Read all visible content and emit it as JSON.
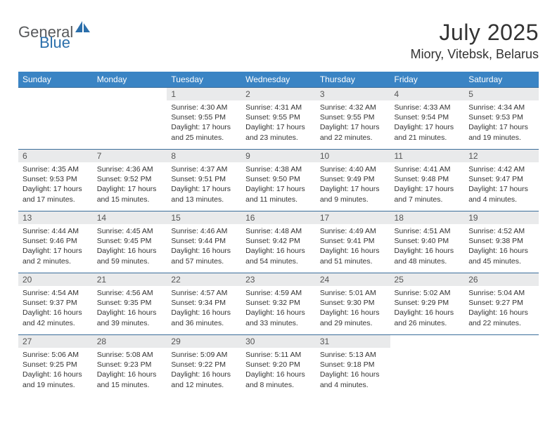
{
  "logo": {
    "general": "General",
    "blue": "Blue"
  },
  "title": {
    "month_year": "July 2025",
    "location": "Miory, Vitebsk, Belarus"
  },
  "colors": {
    "header_bg": "#3a84c4",
    "header_text": "#ffffff",
    "daynum_bg": "#e9eaeb",
    "daynum_border": "#3a6d9a",
    "body_text": "#333333",
    "logo_gray": "#585a5c",
    "logo_blue": "#2b6fab"
  },
  "weekdays": [
    "Sunday",
    "Monday",
    "Tuesday",
    "Wednesday",
    "Thursday",
    "Friday",
    "Saturday"
  ],
  "weeks": [
    [
      null,
      null,
      {
        "n": "1",
        "sr": "4:30 AM",
        "ss": "9:55 PM",
        "dl": "17 hours and 25 minutes."
      },
      {
        "n": "2",
        "sr": "4:31 AM",
        "ss": "9:55 PM",
        "dl": "17 hours and 23 minutes."
      },
      {
        "n": "3",
        "sr": "4:32 AM",
        "ss": "9:55 PM",
        "dl": "17 hours and 22 minutes."
      },
      {
        "n": "4",
        "sr": "4:33 AM",
        "ss": "9:54 PM",
        "dl": "17 hours and 21 minutes."
      },
      {
        "n": "5",
        "sr": "4:34 AM",
        "ss": "9:53 PM",
        "dl": "17 hours and 19 minutes."
      }
    ],
    [
      {
        "n": "6",
        "sr": "4:35 AM",
        "ss": "9:53 PM",
        "dl": "17 hours and 17 minutes."
      },
      {
        "n": "7",
        "sr": "4:36 AM",
        "ss": "9:52 PM",
        "dl": "17 hours and 15 minutes."
      },
      {
        "n": "8",
        "sr": "4:37 AM",
        "ss": "9:51 PM",
        "dl": "17 hours and 13 minutes."
      },
      {
        "n": "9",
        "sr": "4:38 AM",
        "ss": "9:50 PM",
        "dl": "17 hours and 11 minutes."
      },
      {
        "n": "10",
        "sr": "4:40 AM",
        "ss": "9:49 PM",
        "dl": "17 hours and 9 minutes."
      },
      {
        "n": "11",
        "sr": "4:41 AM",
        "ss": "9:48 PM",
        "dl": "17 hours and 7 minutes."
      },
      {
        "n": "12",
        "sr": "4:42 AM",
        "ss": "9:47 PM",
        "dl": "17 hours and 4 minutes."
      }
    ],
    [
      {
        "n": "13",
        "sr": "4:44 AM",
        "ss": "9:46 PM",
        "dl": "17 hours and 2 minutes."
      },
      {
        "n": "14",
        "sr": "4:45 AM",
        "ss": "9:45 PM",
        "dl": "16 hours and 59 minutes."
      },
      {
        "n": "15",
        "sr": "4:46 AM",
        "ss": "9:44 PM",
        "dl": "16 hours and 57 minutes."
      },
      {
        "n": "16",
        "sr": "4:48 AM",
        "ss": "9:42 PM",
        "dl": "16 hours and 54 minutes."
      },
      {
        "n": "17",
        "sr": "4:49 AM",
        "ss": "9:41 PM",
        "dl": "16 hours and 51 minutes."
      },
      {
        "n": "18",
        "sr": "4:51 AM",
        "ss": "9:40 PM",
        "dl": "16 hours and 48 minutes."
      },
      {
        "n": "19",
        "sr": "4:52 AM",
        "ss": "9:38 PM",
        "dl": "16 hours and 45 minutes."
      }
    ],
    [
      {
        "n": "20",
        "sr": "4:54 AM",
        "ss": "9:37 PM",
        "dl": "16 hours and 42 minutes."
      },
      {
        "n": "21",
        "sr": "4:56 AM",
        "ss": "9:35 PM",
        "dl": "16 hours and 39 minutes."
      },
      {
        "n": "22",
        "sr": "4:57 AM",
        "ss": "9:34 PM",
        "dl": "16 hours and 36 minutes."
      },
      {
        "n": "23",
        "sr": "4:59 AM",
        "ss": "9:32 PM",
        "dl": "16 hours and 33 minutes."
      },
      {
        "n": "24",
        "sr": "5:01 AM",
        "ss": "9:30 PM",
        "dl": "16 hours and 29 minutes."
      },
      {
        "n": "25",
        "sr": "5:02 AM",
        "ss": "9:29 PM",
        "dl": "16 hours and 26 minutes."
      },
      {
        "n": "26",
        "sr": "5:04 AM",
        "ss": "9:27 PM",
        "dl": "16 hours and 22 minutes."
      }
    ],
    [
      {
        "n": "27",
        "sr": "5:06 AM",
        "ss": "9:25 PM",
        "dl": "16 hours and 19 minutes."
      },
      {
        "n": "28",
        "sr": "5:08 AM",
        "ss": "9:23 PM",
        "dl": "16 hours and 15 minutes."
      },
      {
        "n": "29",
        "sr": "5:09 AM",
        "ss": "9:22 PM",
        "dl": "16 hours and 12 minutes."
      },
      {
        "n": "30",
        "sr": "5:11 AM",
        "ss": "9:20 PM",
        "dl": "16 hours and 8 minutes."
      },
      {
        "n": "31",
        "sr": "5:13 AM",
        "ss": "9:18 PM",
        "dl": "16 hours and 4 minutes."
      },
      null,
      null
    ]
  ],
  "labels": {
    "sunrise": "Sunrise:",
    "sunset": "Sunset:",
    "daylight": "Daylight:"
  }
}
